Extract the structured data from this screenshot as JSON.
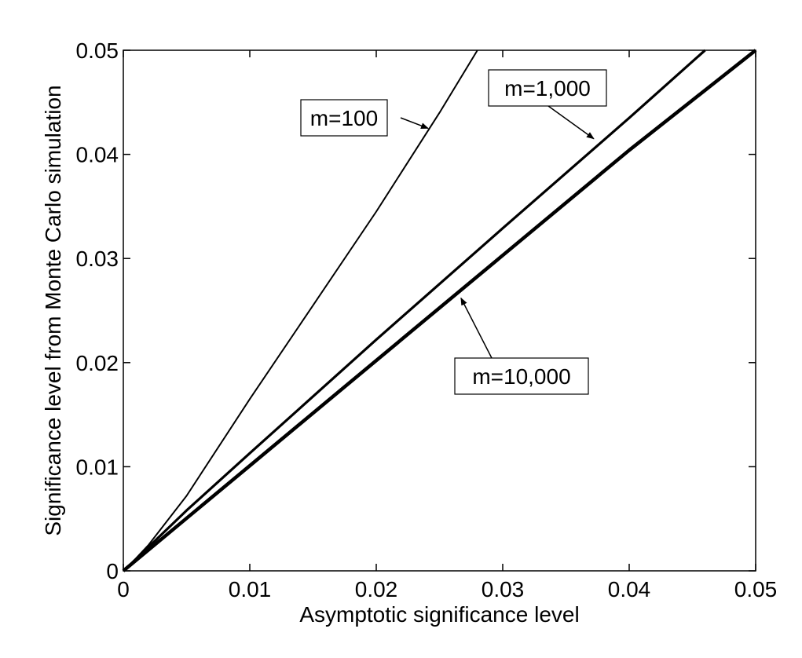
{
  "chart_data": {
    "type": "line",
    "xlabel": "Asymptotic significance level",
    "ylabel": "Significance level from Monte Carlo simulation",
    "xlim": [
      0,
      0.05
    ],
    "ylim": [
      0,
      0.05
    ],
    "xticks": [
      "0",
      "0.01",
      "0.02",
      "0.03",
      "0.04",
      "0.05"
    ],
    "yticks": [
      "0",
      "0.01",
      "0.02",
      "0.03",
      "0.04",
      "0.05"
    ],
    "grid": false,
    "series": [
      {
        "name": "m=100",
        "stroke": "thin",
        "x": [
          0,
          0.001,
          0.002,
          0.005,
          0.01,
          0.015,
          0.02,
          0.025,
          0.028
        ],
        "y": [
          0,
          0.0012,
          0.0025,
          0.0072,
          0.0165,
          0.0255,
          0.0345,
          0.044,
          0.05
        ]
      },
      {
        "name": "m=1,000",
        "stroke": "medium",
        "x": [
          0,
          0.001,
          0.002,
          0.005,
          0.01,
          0.02,
          0.03,
          0.04,
          0.046
        ],
        "y": [
          0,
          0.0011,
          0.0023,
          0.0058,
          0.0113,
          0.0222,
          0.0329,
          0.0435,
          0.05
        ]
      },
      {
        "name": "m=10,000",
        "stroke": "thick",
        "x": [
          0,
          0.01,
          0.02,
          0.03,
          0.04,
          0.05
        ],
        "y": [
          0,
          0.0101,
          0.0202,
          0.0303,
          0.0404,
          0.05
        ]
      }
    ],
    "annotations": [
      {
        "text": "m=100",
        "target": {
          "x": 0.0241,
          "y": 0.0425
        }
      },
      {
        "text": "m=1,000",
        "target": {
          "x": 0.0372,
          "y": 0.0415
        }
      },
      {
        "text": "m=10,000",
        "target": {
          "x": 0.0267,
          "y": 0.0262
        }
      }
    ]
  }
}
